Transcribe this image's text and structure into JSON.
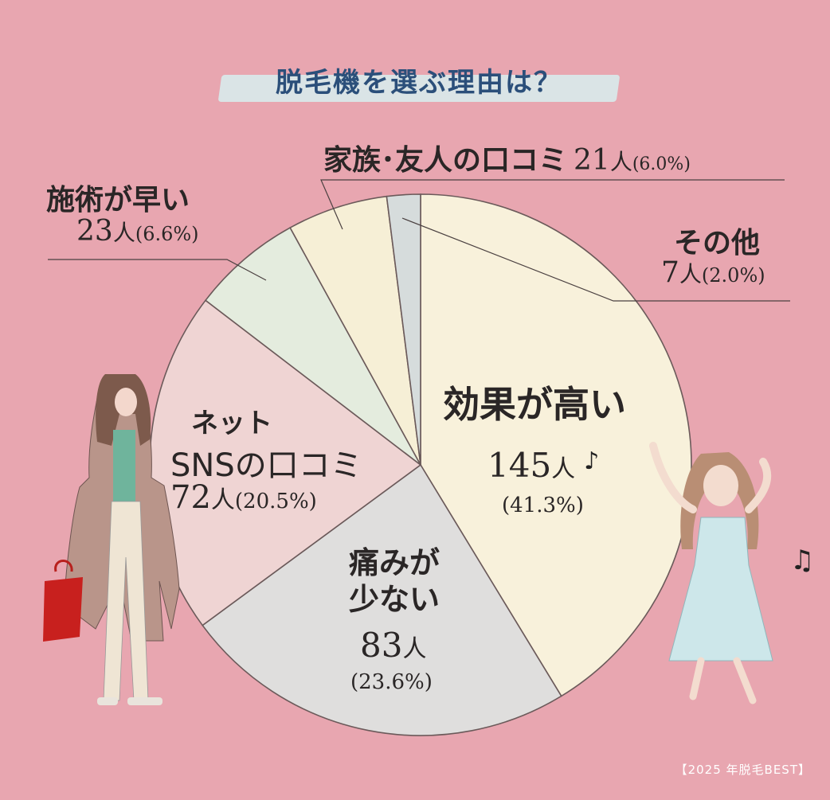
{
  "title": "脱毛機を選ぶ理由は？",
  "source": "【2025 年脱毛BEST】",
  "colors": {
    "background": "#e8a6b0",
    "title_band": "#d7eef0",
    "title_text": "#2b4f7a",
    "slice_outline": "#6b5a5a"
  },
  "chart_data": {
    "type": "pie",
    "title": "脱毛機を選ぶ理由は？",
    "slices": [
      {
        "label": "効果が高い",
        "count": 145,
        "count_label": "145",
        "unit": "人",
        "percent": 41.3,
        "percent_label": "(41.3%)",
        "color": "#f8f1db"
      },
      {
        "label": "痛みが少ない",
        "count": 83,
        "count_label": "83",
        "unit": "人",
        "percent": 23.6,
        "percent_label": "(23.6%)",
        "color": "#dfdedd"
      },
      {
        "label": "ネット SNSの口コミ",
        "count": 72,
        "count_label": "72",
        "unit": "人",
        "percent": 20.5,
        "percent_label": "(20.5%)",
        "color": "#efd4d3"
      },
      {
        "label": "施術が早い",
        "count": 23,
        "count_label": "23",
        "unit": "人",
        "percent": 6.6,
        "percent_label": "(6.6%)",
        "color": "#e4ecde"
      },
      {
        "label": "家族･友人の口コミ",
        "count": 21,
        "count_label": "21",
        "unit": "人",
        "percent": 6.0,
        "percent_label": "(6.0%)",
        "color": "#f6efd6"
      },
      {
        "label": "その他",
        "count": 7,
        "count_label": "7",
        "unit": "人",
        "percent": 2.0,
        "percent_label": "(2.0%)",
        "color": "#d6dcdc"
      }
    ]
  },
  "labels": {
    "kouka": {
      "line1": "効果が高い",
      "num": "145",
      "unit": "人",
      "pct": "(41.3%)"
    },
    "itami": {
      "line1": "痛みが",
      "line2": "少ない",
      "num": "83",
      "unit": "人",
      "pct": "(23.6%)"
    },
    "net": {
      "line1": "ネット",
      "line2": "SNSの口コミ",
      "num": "72",
      "unit": "人",
      "pct": "(20.5%)"
    },
    "sejutsu": {
      "line1": "施術が早い",
      "num": "23",
      "unit": "人",
      "pct": "(6.6%)"
    },
    "kazoku": {
      "line1": "家族･友人の口コミ",
      "num": "21",
      "unit": "人",
      "pct": "(6.0%)"
    },
    "sonota": {
      "line1": "その他",
      "num": "7",
      "unit": "人",
      "pct": "(2.0%)"
    }
  },
  "decorations": {
    "note1": "♪",
    "note2": "♫"
  }
}
